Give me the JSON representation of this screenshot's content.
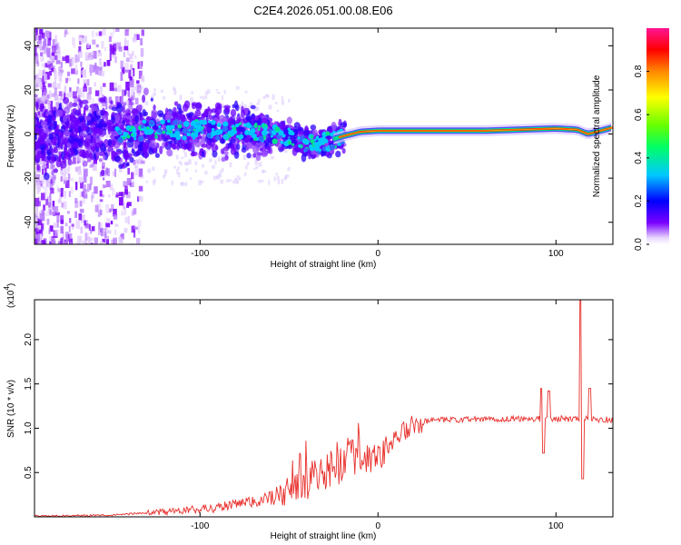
{
  "title": "C2E4.2026.051.00.08.E06",
  "chart_data": [
    {
      "type": "heatmap",
      "xlabel": "Height of straight line (km)",
      "ylabel": "Frequency (Hz)",
      "xlim": [
        -193,
        132
      ],
      "ylim": [
        -50,
        48
      ],
      "xticks": [
        -100,
        0,
        100
      ],
      "yticks": [
        -40,
        -20,
        0,
        20,
        40
      ],
      "xtick_labels": [
        "-100",
        "0",
        "100"
      ],
      "ytick_labels": [
        "-40",
        "-20",
        "0",
        "20",
        "40"
      ],
      "ridge": [
        {
          "x": -190,
          "f": 0
        },
        {
          "x": -150,
          "f": 1
        },
        {
          "x": -120,
          "f": 2
        },
        {
          "x": -90,
          "f": 2
        },
        {
          "x": -70,
          "f": 1
        },
        {
          "x": -55,
          "f": 0
        },
        {
          "x": -45,
          "f": -3
        },
        {
          "x": -35,
          "f": -5
        },
        {
          "x": -28,
          "f": -3
        },
        {
          "x": -20,
          "f": -1
        },
        {
          "x": -10,
          "f": 1
        },
        {
          "x": 0,
          "f": 1.5
        },
        {
          "x": 30,
          "f": 1.5
        },
        {
          "x": 60,
          "f": 1.5
        },
        {
          "x": 80,
          "f": 2
        },
        {
          "x": 100,
          "f": 2.5
        },
        {
          "x": 112,
          "f": 2
        },
        {
          "x": 118,
          "f": 0
        },
        {
          "x": 132,
          "f": 3
        }
      ],
      "colorbar": {
        "label": "Normalized spectral amplitude",
        "range": [
          0,
          1
        ],
        "ticks": [
          "0.0",
          "0.2",
          "0.4",
          "0.6",
          "0.8"
        ]
      }
    },
    {
      "type": "line",
      "series": [
        {
          "name": "SNR",
          "color": "#e8302c"
        }
      ],
      "xlabel": "Height of straight line (km)",
      "ylabel": "SNR (10 * v/v)",
      "y_multiplier": "(x10",
      "y_multiplier_exp": "4",
      "xlim": [
        -193,
        132
      ],
      "ylim": [
        0,
        2.45
      ],
      "xticks": [
        -100,
        0,
        100
      ],
      "yticks": [
        0.5,
        1.0,
        1.5,
        2.0
      ],
      "xtick_labels": [
        "-100",
        "0",
        "100"
      ],
      "ytick_labels": [
        "0.5",
        "1.0",
        "1.5",
        "2.0"
      ],
      "envelope": [
        {
          "x": -193,
          "y": 0.01
        },
        {
          "x": -150,
          "y": 0.02
        },
        {
          "x": -120,
          "y": 0.06
        },
        {
          "x": -100,
          "y": 0.09
        },
        {
          "x": -80,
          "y": 0.14
        },
        {
          "x": -60,
          "y": 0.22
        },
        {
          "x": -45,
          "y": 0.35
        },
        {
          "x": -30,
          "y": 0.55
        },
        {
          "x": -20,
          "y": 0.65
        },
        {
          "x": -10,
          "y": 0.7
        },
        {
          "x": 0,
          "y": 0.72
        },
        {
          "x": 10,
          "y": 0.9
        },
        {
          "x": 20,
          "y": 1.05
        },
        {
          "x": 30,
          "y": 1.09
        },
        {
          "x": 50,
          "y": 1.1
        },
        {
          "x": 80,
          "y": 1.11
        },
        {
          "x": 110,
          "y": 1.11
        },
        {
          "x": 132,
          "y": 1.1
        }
      ],
      "spikes": [
        {
          "x": 92,
          "y": 1.45
        },
        {
          "x": 93,
          "y": 0.72
        },
        {
          "x": 96,
          "y": 1.42
        },
        {
          "x": 114,
          "y": 2.45
        },
        {
          "x": 115,
          "y": 0.43
        },
        {
          "x": 119,
          "y": 1.45
        }
      ]
    }
  ]
}
